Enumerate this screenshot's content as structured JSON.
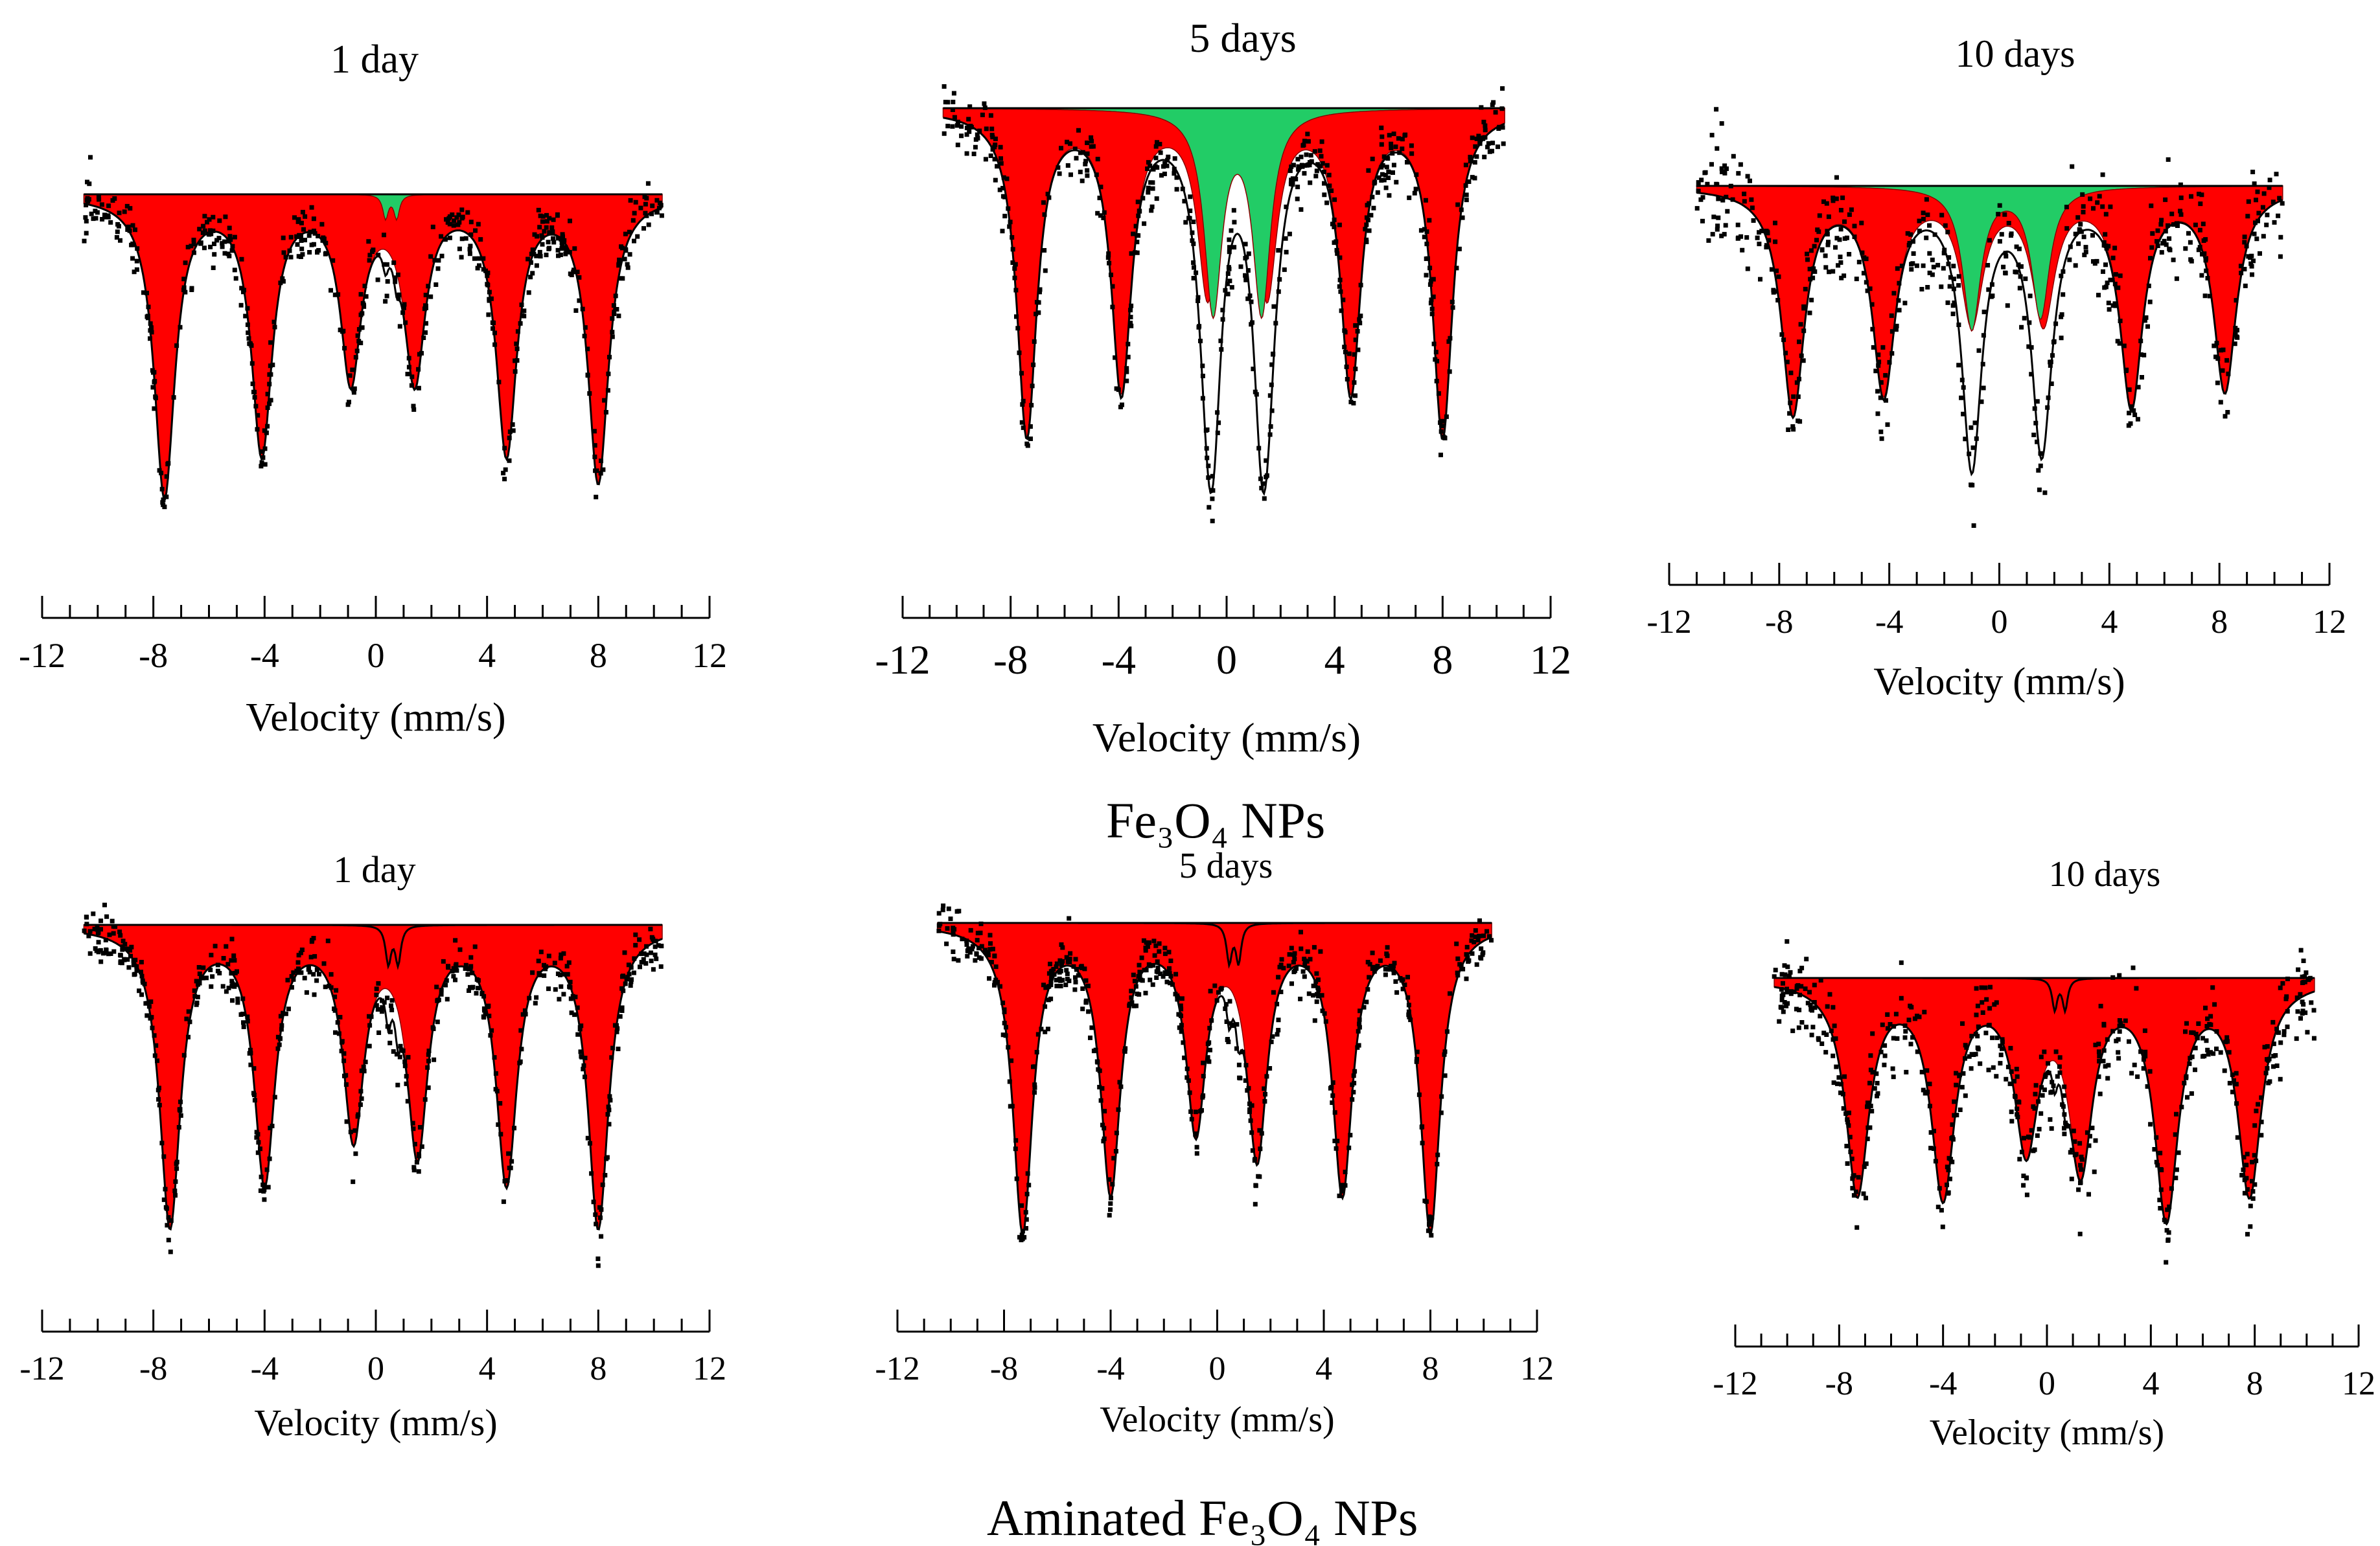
{
  "figure": {
    "captions": {
      "top_group": "Fe₃O₄ NPs",
      "bottom_group": "Aminated Fe₃O₄ NPs"
    },
    "colors": {
      "sextet_fill": "#ff0000",
      "doublet_fill": "#22cc66",
      "data_points": "#000000",
      "fit_line": "#000000"
    }
  },
  "chart_data": [
    {
      "type": "scatter",
      "group": "Fe3O4 NPs",
      "title": "1 day",
      "xlabel": "Velocity (mm/s)",
      "ylabel": "",
      "xlim": [
        -12,
        12
      ],
      "xticks": [
        -12,
        -8,
        -4,
        0,
        4,
        8,
        12
      ],
      "data_range": [
        -10.5,
        10.3
      ],
      "components": [
        {
          "name": "Sextet",
          "color": "red",
          "lines": [
            [
              -7.6,
              1.0
            ],
            [
              -4.1,
              0.85
            ],
            [
              -0.9,
              0.6
            ],
            [
              1.4,
              0.6
            ],
            [
              4.7,
              0.85
            ],
            [
              8.0,
              0.95
            ]
          ],
          "width": 0.45
        },
        {
          "name": "Doublet",
          "color": "green",
          "lines": [
            [
              0.35,
              0.08
            ],
            [
              0.75,
              0.08
            ]
          ],
          "width": 0.12
        }
      ]
    },
    {
      "type": "scatter",
      "group": "Fe3O4 NPs",
      "title": "5 days",
      "xlabel": "Velocity (mm/s)",
      "ylabel": "",
      "xlim": [
        -12,
        12
      ],
      "xticks": [
        -12,
        -8,
        -4,
        0,
        4,
        8,
        12
      ],
      "data_range": [
        -10.5,
        10.3
      ],
      "components": [
        {
          "name": "Sextet",
          "color": "red",
          "lines": [
            [
              -7.4,
              1.0
            ],
            [
              -3.9,
              0.85
            ],
            [
              -0.7,
              0.55
            ],
            [
              1.5,
              0.55
            ],
            [
              4.6,
              0.85
            ],
            [
              8.0,
              1.0
            ]
          ],
          "width": 0.45
        },
        {
          "name": "Doublet",
          "color": "green",
          "lines": [
            [
              -0.5,
              0.62
            ],
            [
              1.3,
              0.62
            ]
          ],
          "width": 0.4
        }
      ]
    },
    {
      "type": "scatter",
      "group": "Fe3O4 NPs",
      "title": "10 days",
      "xlabel": "Velocity (mm/s)",
      "ylabel": "",
      "xlim": [
        -12,
        12
      ],
      "xticks": [
        -12,
        -8,
        -4,
        0,
        4,
        8,
        12
      ],
      "data_range": [
        -11.0,
        10.3
      ],
      "components": [
        {
          "name": "Sextet",
          "color": "red",
          "lines": [
            [
              -7.5,
              0.95
            ],
            [
              -4.2,
              0.85
            ],
            [
              -1.0,
              0.55
            ],
            [
              1.6,
              0.55
            ],
            [
              4.8,
              0.9
            ],
            [
              8.2,
              0.85
            ]
          ],
          "width": 0.5
        },
        {
          "name": "Doublet",
          "color": "green",
          "lines": [
            [
              -1.0,
              0.6
            ],
            [
              1.5,
              0.55
            ]
          ],
          "width": 0.4
        }
      ]
    },
    {
      "type": "scatter",
      "group": "Aminated Fe3O4 NPs",
      "title": "1 day",
      "xlabel": "Velocity (mm/s)",
      "ylabel": "",
      "xlim": [
        -12,
        12
      ],
      "xticks": [
        -12,
        -8,
        -4,
        0,
        4,
        8,
        12
      ],
      "data_range": [
        -10.5,
        10.3
      ],
      "components": [
        {
          "name": "Sextet",
          "color": "red",
          "lines": [
            [
              -7.4,
              0.95
            ],
            [
              -4.0,
              0.8
            ],
            [
              -0.8,
              0.65
            ],
            [
              1.5,
              0.7
            ],
            [
              4.7,
              0.8
            ],
            [
              8.0,
              0.95
            ]
          ],
          "width": 0.45
        },
        {
          "name": "Doublet",
          "color": "none",
          "lines": [
            [
              0.45,
              0.12
            ],
            [
              0.8,
              0.12
            ]
          ],
          "width": 0.12
        }
      ]
    },
    {
      "type": "scatter",
      "group": "Aminated Fe3O4 NPs",
      "title": "5 days",
      "xlabel": "Velocity (mm/s)",
      "ylabel": "",
      "xlim": [
        -12,
        12
      ],
      "xticks": [
        -12,
        -8,
        -4,
        0,
        4,
        8,
        12
      ],
      "data_range": [
        -10.5,
        10.3
      ],
      "components": [
        {
          "name": "Sextet",
          "color": "red",
          "lines": [
            [
              -7.3,
              0.95
            ],
            [
              -4.0,
              0.82
            ],
            [
              -0.8,
              0.62
            ],
            [
              1.5,
              0.7
            ],
            [
              4.7,
              0.82
            ],
            [
              8.0,
              0.95
            ]
          ],
          "width": 0.45
        },
        {
          "name": "Doublet",
          "color": "none",
          "lines": [
            [
              0.45,
              0.12
            ],
            [
              0.8,
              0.12
            ]
          ],
          "width": 0.12
        }
      ]
    },
    {
      "type": "scatter",
      "group": "Aminated Fe3O4 NPs",
      "title": "10 days",
      "xlabel": "Velocity (mm/s)",
      "ylabel": "",
      "xlim": [
        -12,
        12
      ],
      "xticks": [
        -12,
        -8,
        -4,
        0,
        4,
        8,
        12
      ],
      "data_range": [
        -10.5,
        10.3
      ],
      "components": [
        {
          "name": "Sextet",
          "color": "red",
          "lines": [
            [
              -7.3,
              0.82
            ],
            [
              -4.0,
              0.82
            ],
            [
              -0.8,
              0.62
            ],
            [
              1.3,
              0.7
            ],
            [
              4.6,
              0.9
            ],
            [
              7.8,
              0.82
            ]
          ],
          "width": 0.55
        },
        {
          "name": "Doublet",
          "color": "none",
          "lines": [
            [
              0.3,
              0.12
            ],
            [
              0.7,
              0.12
            ]
          ],
          "width": 0.12
        }
      ]
    }
  ]
}
